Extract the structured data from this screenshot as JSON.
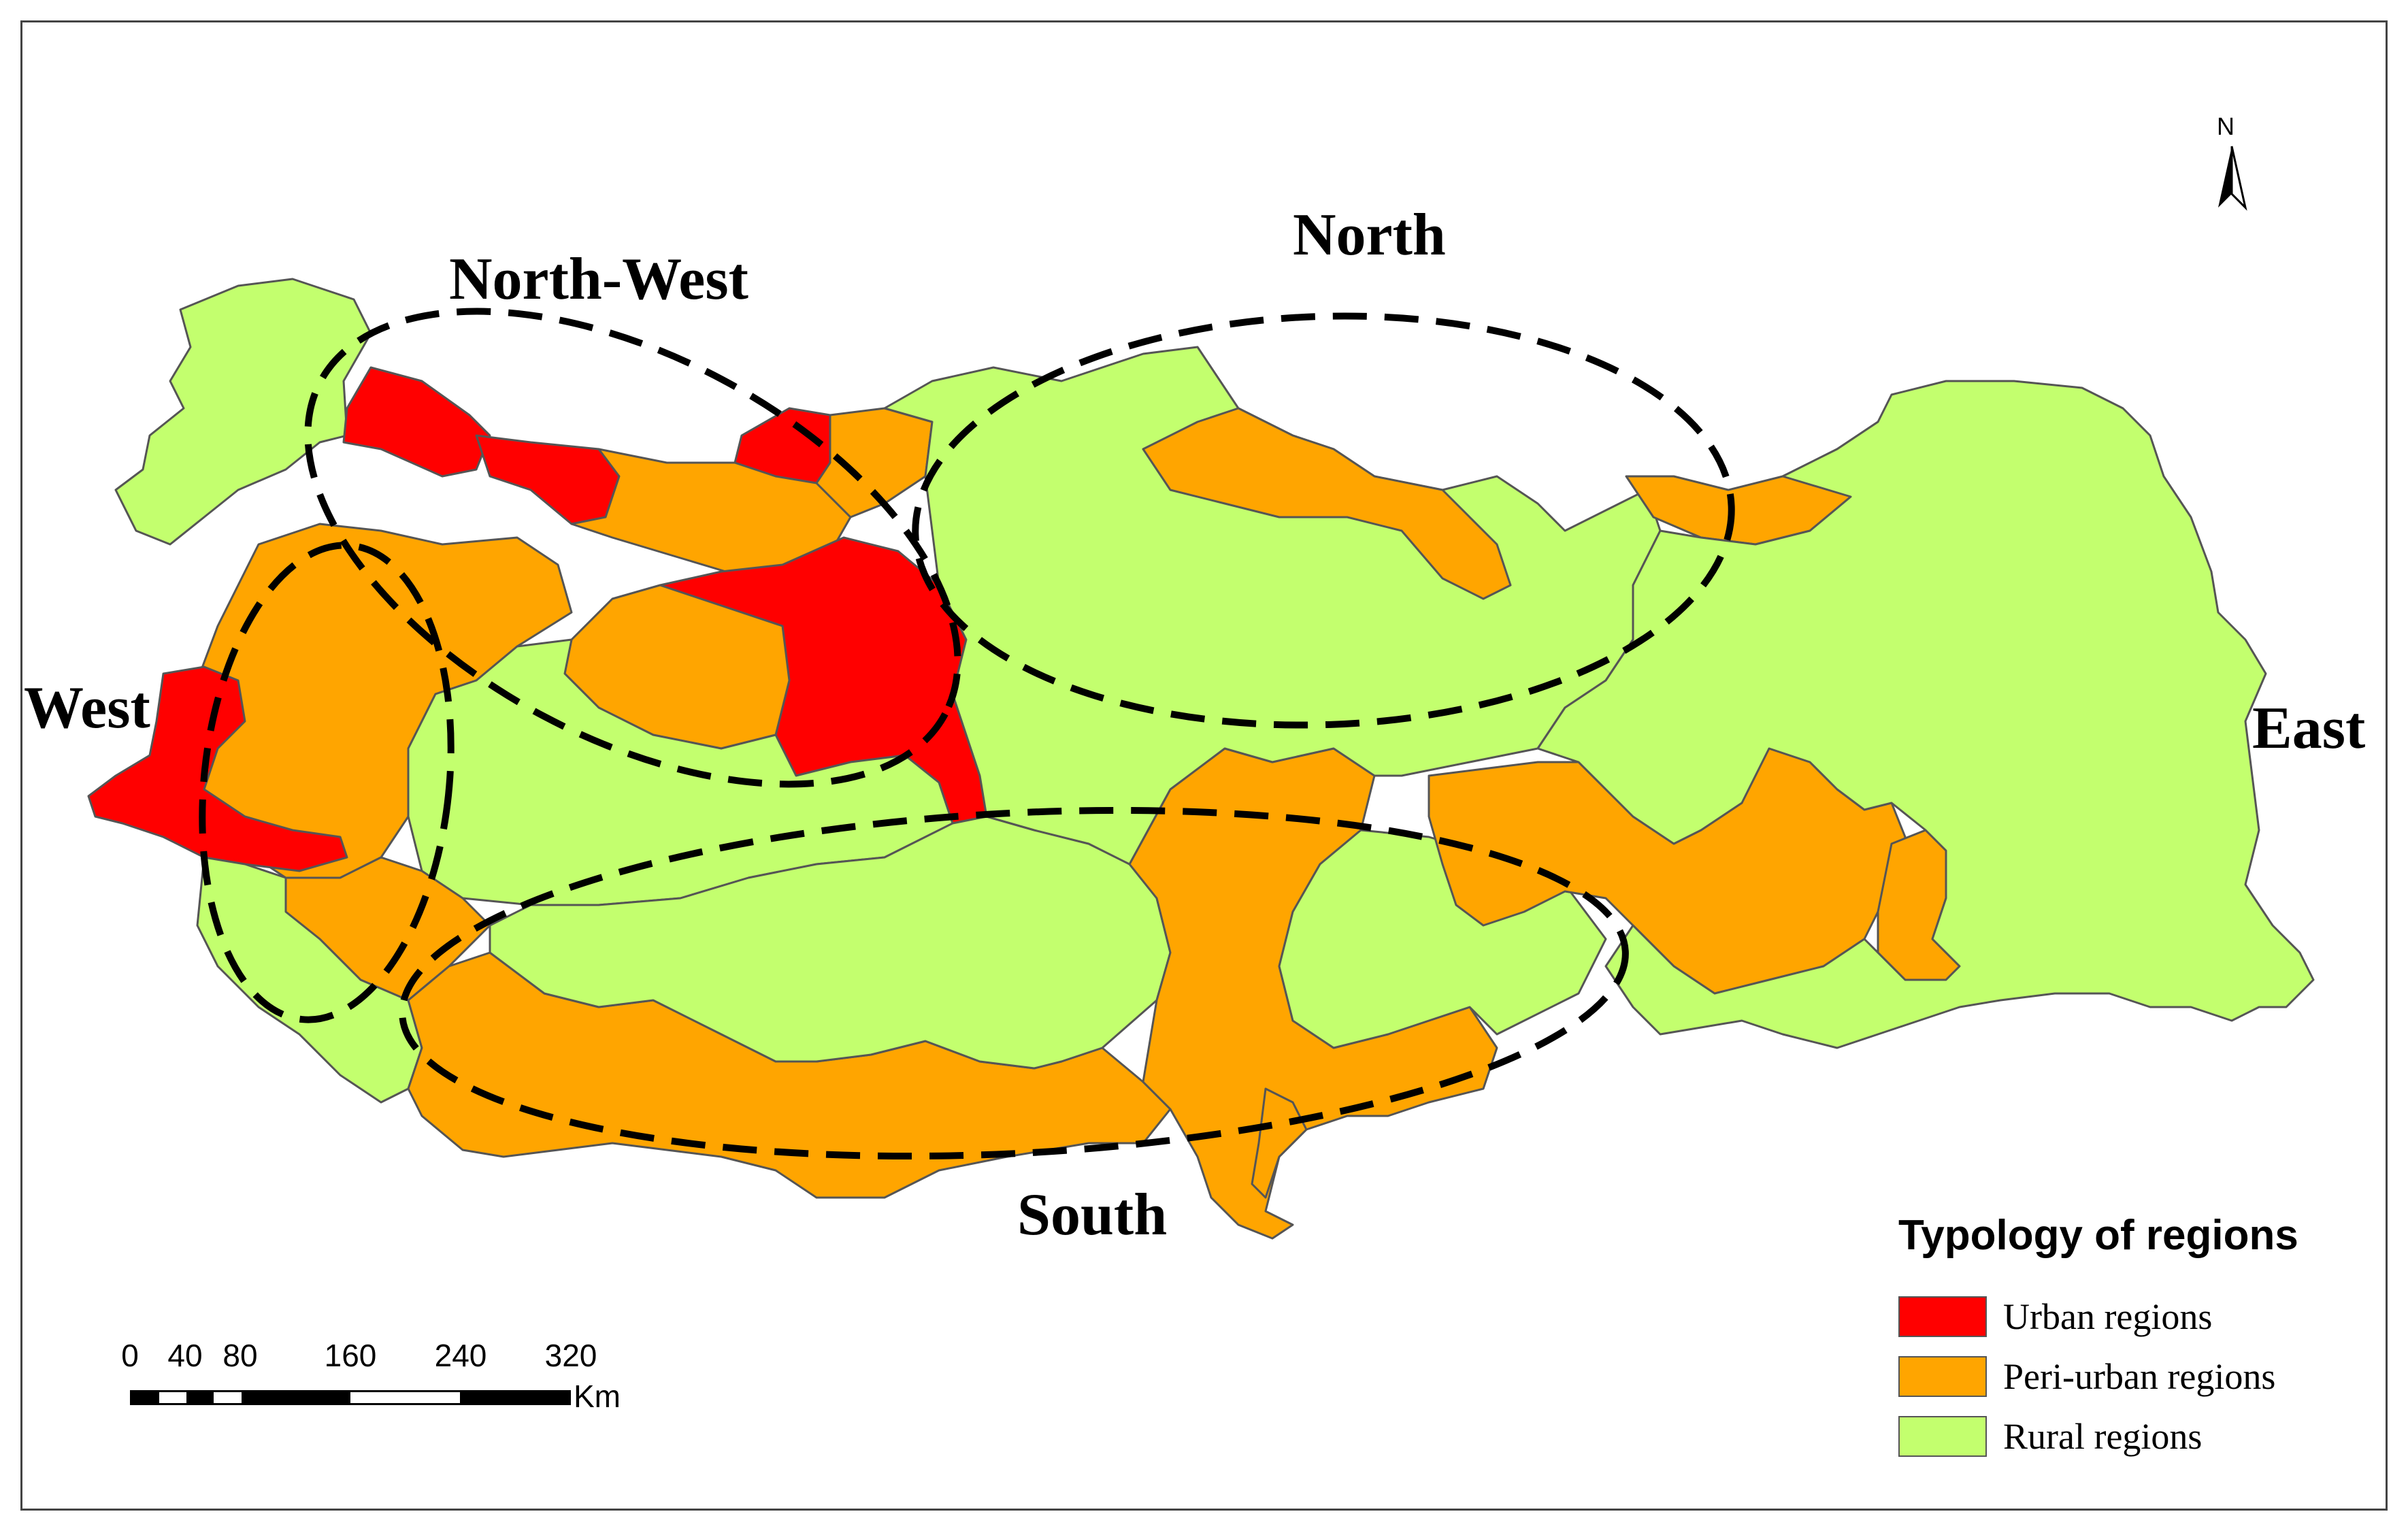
{
  "map": {
    "region_labels": {
      "north_west": "North-West",
      "north": "North",
      "west": "West",
      "east": "East",
      "south": "South"
    },
    "colors": {
      "urban": "#ff0000",
      "peri_urban": "#ffa500",
      "rural": "#c3ff6e",
      "border": "#555555",
      "dashed": "#000000"
    }
  },
  "legend": {
    "title": "Typology of regions",
    "items": [
      {
        "label": "Urban regions",
        "color": "#ff0000"
      },
      {
        "label": "Peri-urban regions",
        "color": "#ffa500"
      },
      {
        "label": "Rural regions",
        "color": "#c3ff6e"
      }
    ]
  },
  "scale": {
    "ticks": [
      "0",
      "40",
      "80",
      "160",
      "240",
      "320"
    ],
    "unit": "Km"
  },
  "north_arrow": {
    "letter": "N"
  }
}
